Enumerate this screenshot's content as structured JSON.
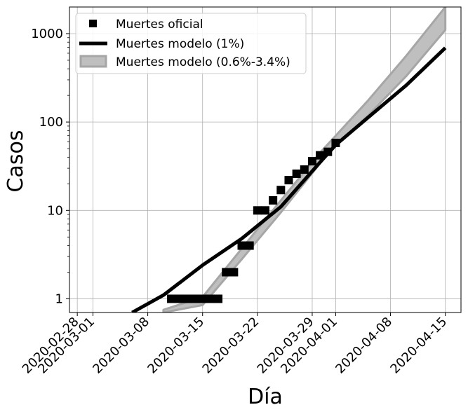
{
  "chart_data": {
    "type": "line",
    "xlabel": "Día",
    "ylabel": "Casos",
    "yscale": "log",
    "ylim": [
      0.7,
      2000
    ],
    "xlim": [
      "2020-02-27",
      "2020-04-17"
    ],
    "grid": true,
    "legend_position": "top-left",
    "x_ticks": [
      "2020-02-28",
      "2020-03-01",
      "2020-03-08",
      "2020-03-15",
      "2020-03-22",
      "2020-03-29",
      "2020-04-01",
      "2020-04-08",
      "2020-04-15"
    ],
    "y_ticks": [
      {
        "value": 1,
        "label": "1"
      },
      {
        "value": 10,
        "label": "10"
      },
      {
        "value": 100,
        "label": "100"
      },
      {
        "value": 1000,
        "label": "1000"
      }
    ],
    "colors": {
      "observed": "#000000",
      "model_line": "#000000",
      "band_fill": "#bfbfbf",
      "band_edge": "#a6a6a6",
      "grid": "#b0b0b0"
    },
    "series": [
      {
        "name": "Muertes oficial",
        "kind": "markers",
        "points": [
          {
            "x": "2020-03-11",
            "y": 1
          },
          {
            "x": "2020-03-12",
            "y": 1
          },
          {
            "x": "2020-03-13",
            "y": 1
          },
          {
            "x": "2020-03-14",
            "y": 1
          },
          {
            "x": "2020-03-15",
            "y": 1
          },
          {
            "x": "2020-03-16",
            "y": 1
          },
          {
            "x": "2020-03-17",
            "y": 1
          },
          {
            "x": "2020-03-18",
            "y": 2
          },
          {
            "x": "2020-03-19",
            "y": 2
          },
          {
            "x": "2020-03-20",
            "y": 4
          },
          {
            "x": "2020-03-21",
            "y": 4
          },
          {
            "x": "2020-03-22",
            "y": 10
          },
          {
            "x": "2020-03-23",
            "y": 10
          },
          {
            "x": "2020-03-24",
            "y": 13
          },
          {
            "x": "2020-03-25",
            "y": 17
          },
          {
            "x": "2020-03-26",
            "y": 22
          },
          {
            "x": "2020-03-27",
            "y": 26
          },
          {
            "x": "2020-03-28",
            "y": 29
          },
          {
            "x": "2020-03-29",
            "y": 36
          },
          {
            "x": "2020-03-30",
            "y": 42
          },
          {
            "x": "2020-03-31",
            "y": 46
          },
          {
            "x": "2020-04-01",
            "y": 58
          }
        ]
      },
      {
        "name": "Muertes modelo (1%)",
        "kind": "line",
        "points": [
          {
            "x": "2020-03-06",
            "y": 0.7
          },
          {
            "x": "2020-03-10",
            "y": 1.1
          },
          {
            "x": "2020-03-15",
            "y": 2.4
          },
          {
            "x": "2020-03-20",
            "y": 4.8
          },
          {
            "x": "2020-03-25",
            "y": 11
          },
          {
            "x": "2020-03-30",
            "y": 35
          },
          {
            "x": "2020-04-01",
            "y": 55
          },
          {
            "x": "2020-04-05",
            "y": 110
          },
          {
            "x": "2020-04-10",
            "y": 260
          },
          {
            "x": "2020-04-15",
            "y": 690
          }
        ]
      },
      {
        "name": "Muertes modelo (0.6%-3.4%)",
        "kind": "band",
        "points": [
          {
            "x": "2020-03-10",
            "low": 0.7,
            "high": 0.75
          },
          {
            "x": "2020-03-15",
            "low": 0.85,
            "high": 1.05
          },
          {
            "x": "2020-03-20",
            "low": 2.8,
            "high": 3.7
          },
          {
            "x": "2020-03-25",
            "low": 9.5,
            "high": 13
          },
          {
            "x": "2020-03-30",
            "low": 34,
            "high": 45
          },
          {
            "x": "2020-04-01",
            "low": 55,
            "high": 70
          },
          {
            "x": "2020-04-05",
            "low": 115,
            "high": 170
          },
          {
            "x": "2020-04-10",
            "low": 330,
            "high": 560
          },
          {
            "x": "2020-04-15",
            "low": 1100,
            "high": 2000
          }
        ]
      }
    ]
  }
}
